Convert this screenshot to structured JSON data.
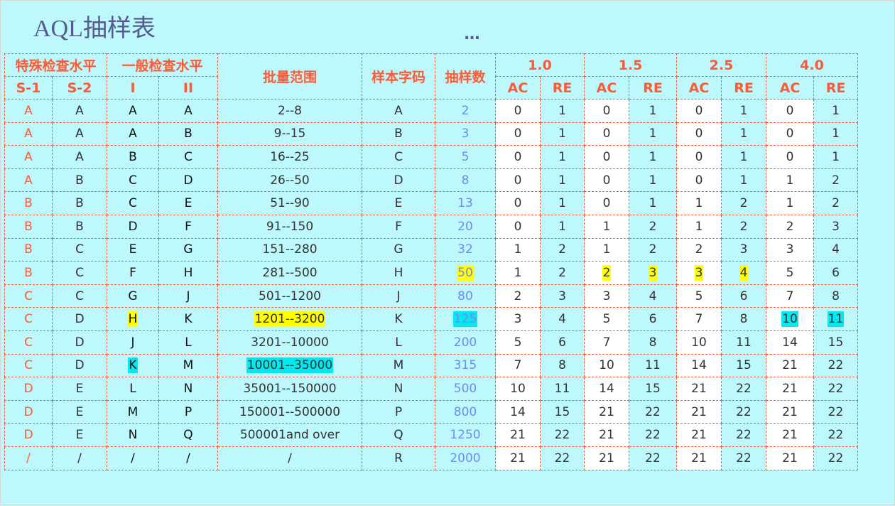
{
  "title": "AQL抽样表",
  "more": "...",
  "colors": {
    "background": "#bcf8fc",
    "header_text": "#ff5a36",
    "yellow": "#ffff00",
    "cyan": "#00eaf0",
    "sample_count": "#6f8cf0"
  },
  "header": {
    "special": "特殊检查水平",
    "general": "一般检查水平",
    "lot_range": "批量范围",
    "code_letter": "样本字码",
    "sample_size": "抽样数",
    "s1": "S-1",
    "s2": "S-2",
    "g1": "I",
    "g2": "II",
    "aql": [
      "1.0",
      "1.5",
      "2.5",
      "4.0"
    ],
    "ac": "AC",
    "re": "RE"
  },
  "rows": [
    [
      "A",
      "A",
      "A",
      "A",
      "2--8",
      "A",
      "2",
      "0",
      "1",
      "0",
      "1",
      "0",
      "1",
      "0",
      "1"
    ],
    [
      "A",
      "A",
      "A",
      "B",
      "9--15",
      "B",
      "3",
      "0",
      "1",
      "0",
      "1",
      "0",
      "1",
      "0",
      "1"
    ],
    [
      "A",
      "A",
      "B",
      "C",
      "16--25",
      "C",
      "5",
      "0",
      "1",
      "0",
      "1",
      "0",
      "1",
      "0",
      "1"
    ],
    [
      "A",
      "B",
      "C",
      "D",
      "26--50",
      "D",
      "8",
      "0",
      "1",
      "0",
      "1",
      "0",
      "1",
      "1",
      "2"
    ],
    [
      "B",
      "B",
      "C",
      "E",
      "51--90",
      "E",
      "13",
      "0",
      "1",
      "0",
      "1",
      "1",
      "2",
      "1",
      "2"
    ],
    [
      "B",
      "B",
      "D",
      "F",
      "91--150",
      "F",
      "20",
      "0",
      "1",
      "1",
      "2",
      "1",
      "2",
      "2",
      "3"
    ],
    [
      "B",
      "C",
      "E",
      "G",
      "151--280",
      "G",
      "32",
      "1",
      "2",
      "1",
      "2",
      "2",
      "3",
      "3",
      "4"
    ],
    [
      "B",
      "C",
      "F",
      "H",
      "281--500",
      "H",
      "50",
      "1",
      "2",
      "2",
      "3",
      "3",
      "4",
      "5",
      "6"
    ],
    [
      "C",
      "C",
      "G",
      "J",
      "501--1200",
      "J",
      "80",
      "2",
      "3",
      "3",
      "4",
      "5",
      "6",
      "7",
      "8"
    ],
    [
      "C",
      "D",
      "H",
      "K",
      "1201--3200",
      "K",
      "125",
      "3",
      "4",
      "5",
      "6",
      "7",
      "8",
      "10",
      "11"
    ],
    [
      "C",
      "D",
      "J",
      "L",
      "3201--10000",
      "L",
      "200",
      "5",
      "6",
      "7",
      "8",
      "10",
      "11",
      "14",
      "15"
    ],
    [
      "C",
      "D",
      "K",
      "M",
      "10001--35000",
      "M",
      "315",
      "7",
      "8",
      "10",
      "11",
      "14",
      "15",
      "21",
      "22"
    ],
    [
      "D",
      "E",
      "L",
      "N",
      "35001--150000",
      "N",
      "500",
      "10",
      "11",
      "14",
      "15",
      "21",
      "22",
      "21",
      "22"
    ],
    [
      "D",
      "E",
      "M",
      "P",
      "150001--500000",
      "P",
      "800",
      "14",
      "15",
      "21",
      "22",
      "21",
      "22",
      "21",
      "22"
    ],
    [
      "D",
      "E",
      "N",
      "Q",
      "500001and over",
      "Q",
      "1250",
      "21",
      "22",
      "21",
      "22",
      "21",
      "22",
      "21",
      "22"
    ],
    [
      "/",
      "/",
      "/",
      "/",
      "/",
      "R",
      "2000",
      "21",
      "22",
      "21",
      "22",
      "21",
      "22",
      "21",
      "22"
    ]
  ],
  "highlights": [
    {
      "row": 7,
      "col": 6,
      "color": "yellow"
    },
    {
      "row": 7,
      "col": 9,
      "color": "yellow"
    },
    {
      "row": 7,
      "col": 10,
      "color": "yellow"
    },
    {
      "row": 7,
      "col": 11,
      "color": "yellow"
    },
    {
      "row": 7,
      "col": 12,
      "color": "yellow"
    },
    {
      "row": 9,
      "col": 2,
      "color": "yellow"
    },
    {
      "row": 9,
      "col": 4,
      "color": "yellow"
    },
    {
      "row": 9,
      "col": 6,
      "color": "cyan"
    },
    {
      "row": 9,
      "col": 13,
      "color": "cyan"
    },
    {
      "row": 9,
      "col": 14,
      "color": "cyan"
    },
    {
      "row": 11,
      "col": 2,
      "color": "cyan"
    },
    {
      "row": 11,
      "col": 4,
      "color": "cyan"
    }
  ]
}
